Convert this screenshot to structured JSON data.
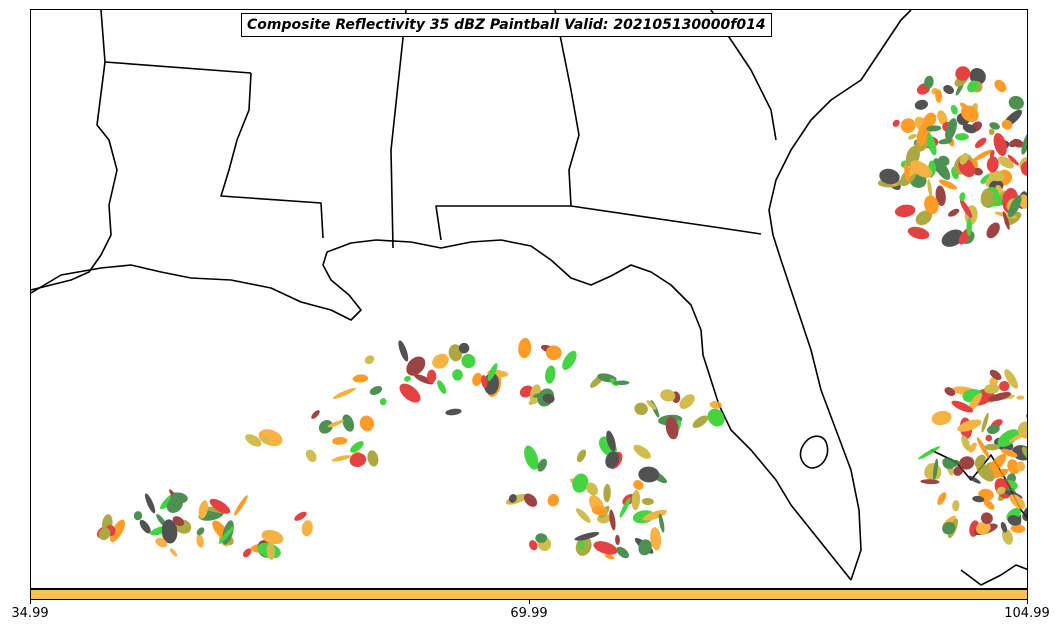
{
  "map": {
    "title": "Composite Reflectivity 35 dBZ Paintball Valid: 202105130000f014",
    "colors": {
      "coastline": "#000000",
      "background": "#ffffff"
    },
    "paintball_colors": [
      "#E02020",
      "#FF8A00",
      "#F5A623",
      "#2E7D32",
      "#22CC22",
      "#8B2222",
      "#9E9A20",
      "#333333",
      "#C9B030"
    ]
  },
  "colorbar": {
    "color": "#FFC05A",
    "ticks": [
      "34.99",
      "69.99",
      "104.99"
    ]
  }
}
